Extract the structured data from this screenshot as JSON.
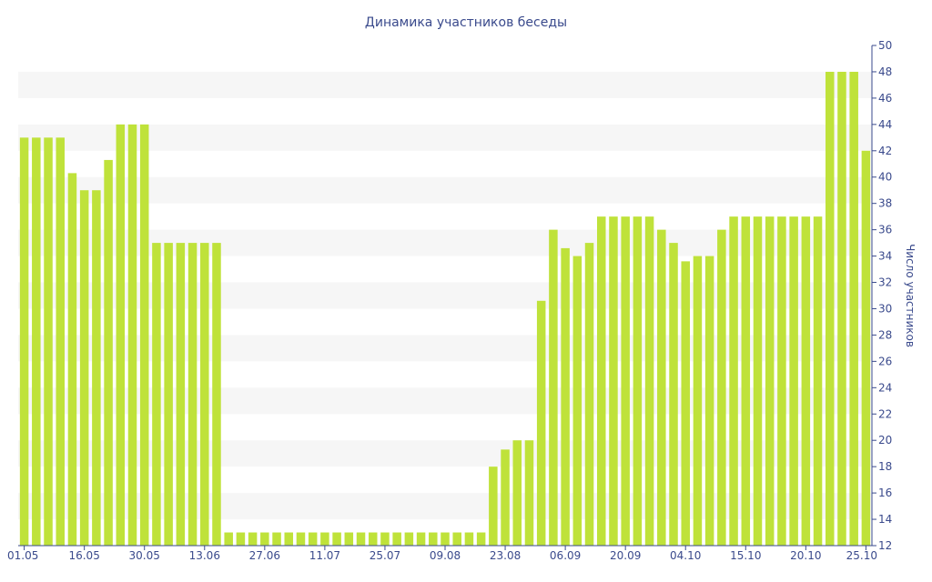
{
  "chart_data": {
    "type": "bar",
    "title": "Динамика участников беседы",
    "xlabel": "",
    "ylabel": "Число участников",
    "y_axis_side": "right",
    "ylim": [
      12,
      50
    ],
    "ytick_step": 2,
    "grid": "alternating horizontal bands",
    "bar_color": "#bfe23a",
    "band_color": "#f6f6f6",
    "text_color": "#3a4a8c",
    "x_tick_labels": [
      "01.05",
      "16.05",
      "30.05",
      "13.06",
      "27.06",
      "11.07",
      "25.07",
      "09.08",
      "23.08",
      "06.09",
      "20.09",
      "04.10",
      "15.10",
      "20.10",
      "25.10"
    ],
    "x_tick_bar_index": [
      0,
      5,
      10,
      15,
      20,
      25,
      30,
      35,
      40,
      45,
      50,
      55,
      60,
      65,
      70
    ],
    "values": [
      43,
      43,
      43,
      43,
      40.3,
      39,
      39,
      41.3,
      44,
      44,
      44,
      35,
      35,
      35,
      35,
      35,
      35,
      13,
      13,
      13,
      13,
      13,
      13,
      13,
      13,
      13,
      13,
      13,
      13,
      13,
      13,
      13,
      13,
      13,
      13,
      13,
      13,
      13,
      13,
      18,
      19.3,
      20,
      20,
      30.6,
      36,
      34.6,
      34,
      35,
      37,
      37,
      37,
      37,
      37,
      36,
      35,
      33.6,
      34,
      34,
      36,
      37,
      37,
      37,
      37,
      37,
      37,
      37,
      37,
      48,
      48,
      48,
      42
    ]
  }
}
